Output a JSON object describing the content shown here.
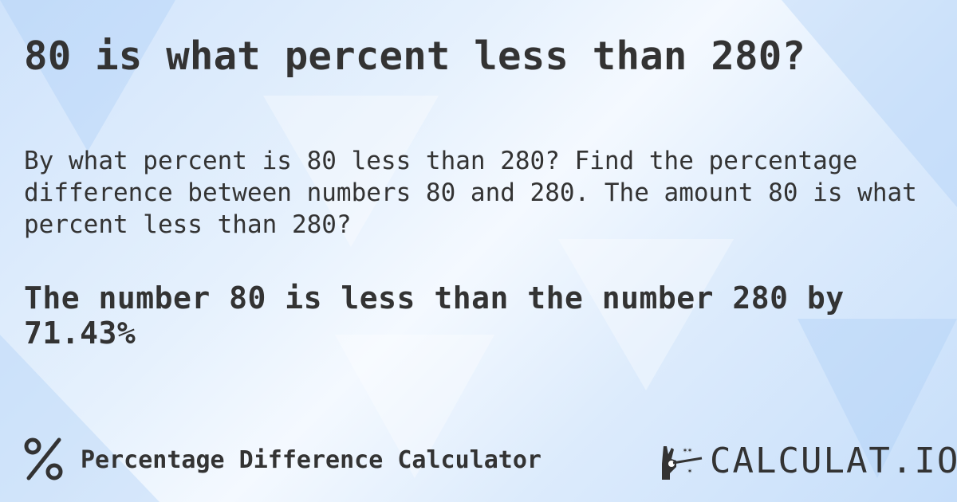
{
  "title": "80 is what percent less than 280?",
  "description": "By what percent is 80 less than 280? Find the percentage difference between numbers 80 and 280. The amount 80 is what percent less than 280?",
  "answer": "The number 80 is less than the number 280 by 71.43%",
  "footer": {
    "icon": "percent-icon",
    "label": "Percentage Difference Calculator"
  },
  "logo": {
    "text": "CALCULAT.IO",
    "icon": "magic-hand-icon"
  },
  "colors": {
    "text": "#333333",
    "background": "#dcebfc"
  }
}
